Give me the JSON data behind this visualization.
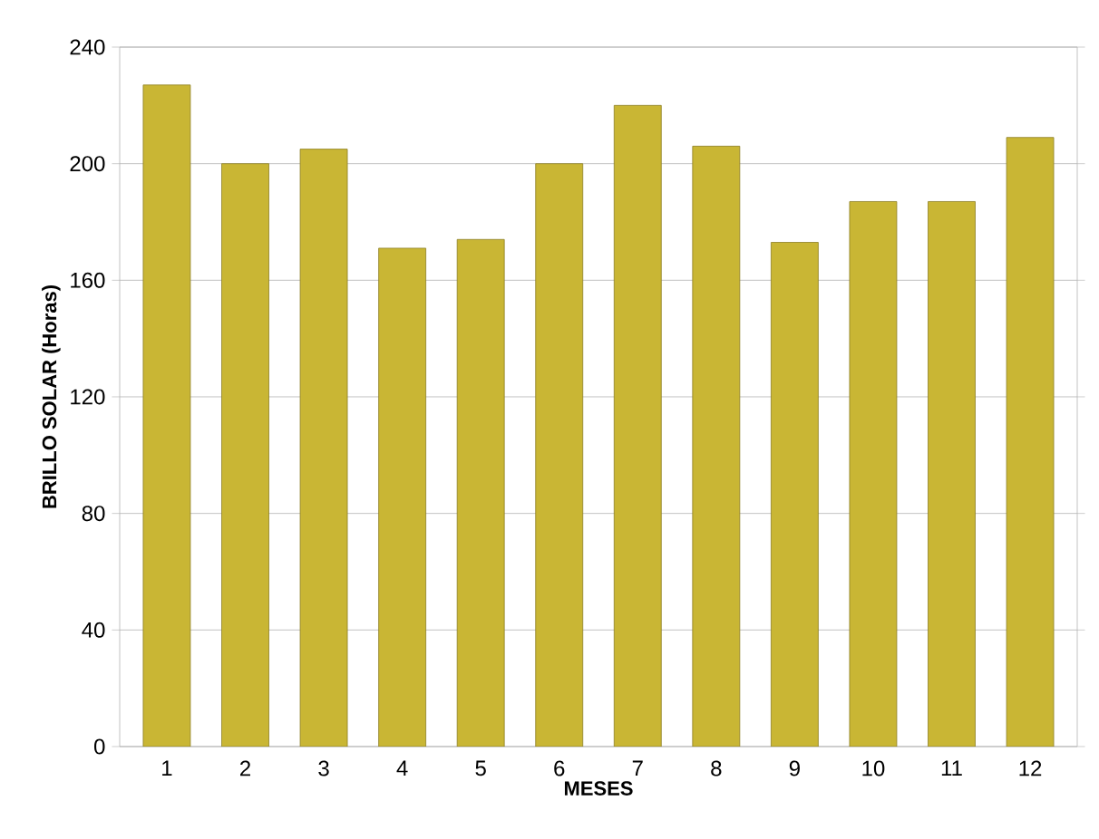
{
  "chart_data": {
    "type": "bar",
    "xlabel": "MESES",
    "ylabel": "BRILLO SOLAR (Horas)",
    "categories": [
      "1",
      "2",
      "3",
      "4",
      "5",
      "6",
      "7",
      "8",
      "9",
      "10",
      "11",
      "12"
    ],
    "values": [
      227,
      200,
      205,
      171,
      174,
      200,
      220,
      206,
      173,
      187,
      187,
      209
    ],
    "color": "#c9b634",
    "ylim": [
      0,
      240
    ],
    "yticks": [
      0,
      40,
      80,
      120,
      160,
      200,
      240
    ],
    "grid": "y"
  }
}
